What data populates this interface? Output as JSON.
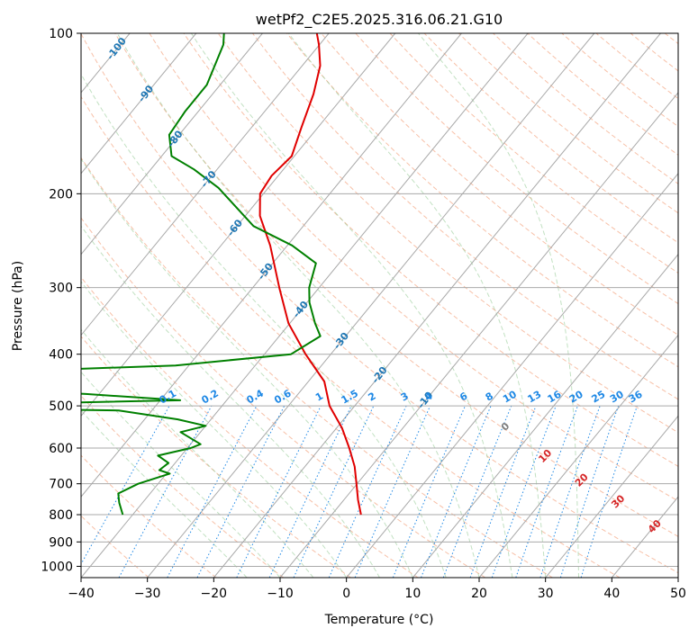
{
  "chart_data": {
    "type": "skew-t",
    "title": "wetPf2_C2E5.2025.316.06.21.G10",
    "xlabel": "Temperature (°C)",
    "ylabel": "Pressure (hPa)",
    "xlim": [
      -40,
      50
    ],
    "ylim": [
      1050,
      100
    ],
    "x_ticks": [
      -40,
      -30,
      -20,
      -10,
      0,
      10,
      20,
      30,
      40,
      50
    ],
    "y_ticks": [
      100,
      200,
      300,
      400,
      500,
      600,
      700,
      800,
      900,
      1000
    ],
    "grid": true,
    "colors": {
      "temperature": "#e00000",
      "dewpoint": "#008000",
      "isotherm": "#a9a9a9",
      "dry_adiabat": "#f4a582",
      "moist_adiabat": "#8fc98f",
      "mixing_ratio": "#1e88e5",
      "isotherm_label": "#1f77b4",
      "moist_label": "#d62728"
    },
    "isotherm_labels": [
      -100,
      -90,
      -80,
      -70,
      -60,
      -50,
      -40,
      -30,
      -20,
      -10
    ],
    "mixing_ratio_labels": [
      "0.1",
      "0.2",
      "0.4",
      "0.6",
      "1",
      "1.5",
      "2",
      "3",
      "4",
      "6",
      "8",
      "10",
      "13",
      "16",
      "20",
      "25",
      "30",
      "36"
    ],
    "moist_adiabat_labels": [
      "0",
      "10",
      "20",
      "30",
      "40"
    ],
    "series": [
      {
        "name": "",
        "role": "temperature",
        "points": [
          [
            800,
            -5.6
          ],
          [
            750,
            -7.9
          ],
          [
            700,
            -10.1
          ],
          [
            650,
            -12.5
          ],
          [
            600,
            -15.6
          ],
          [
            550,
            -19.2
          ],
          [
            500,
            -23.8
          ],
          [
            450,
            -27.6
          ],
          [
            400,
            -33.8
          ],
          [
            350,
            -40.2
          ],
          [
            300,
            -46.0
          ],
          [
            250,
            -52.6
          ],
          [
            220,
            -57.8
          ],
          [
            200,
            -60.5
          ],
          [
            185,
            -61.0
          ],
          [
            170,
            -60.4
          ],
          [
            150,
            -62.5
          ],
          [
            130,
            -64.8
          ],
          [
            115,
            -67.3
          ],
          [
            105,
            -70.1
          ],
          [
            100,
            -71.8
          ]
        ]
      },
      {
        "name": "",
        "role": "dewpoint",
        "points": [
          [
            800,
            -41.5
          ],
          [
            760,
            -43.5
          ],
          [
            730,
            -44.8
          ],
          [
            700,
            -43.0
          ],
          [
            670,
            -39.5
          ],
          [
            660,
            -41.5
          ],
          [
            640,
            -41.0
          ],
          [
            620,
            -43.5
          ],
          [
            600,
            -39.5
          ],
          [
            590,
            -38.5
          ],
          [
            560,
            -43.0
          ],
          [
            545,
            -40.0
          ],
          [
            530,
            -45.0
          ],
          [
            510,
            -55.0
          ],
          [
            505,
            -80.0
          ],
          [
            495,
            -70.0
          ],
          [
            488,
            -47.0
          ],
          [
            475,
            -62.0
          ],
          [
            465,
            -80.0
          ],
          [
            430,
            -75.0
          ],
          [
            420,
            -52.0
          ],
          [
            400,
            -36.0
          ],
          [
            370,
            -33.8
          ],
          [
            350,
            -36.2
          ],
          [
            320,
            -39.6
          ],
          [
            300,
            -41.5
          ],
          [
            270,
            -43.5
          ],
          [
            250,
            -49.3
          ],
          [
            230,
            -57.5
          ],
          [
            210,
            -63.0
          ],
          [
            195,
            -67.5
          ],
          [
            180,
            -73.5
          ],
          [
            170,
            -78.5
          ],
          [
            155,
            -81.5
          ],
          [
            140,
            -82.0
          ],
          [
            125,
            -82.0
          ],
          [
            115,
            -83.2
          ],
          [
            105,
            -84.5
          ],
          [
            100,
            -85.8
          ]
        ]
      }
    ]
  }
}
